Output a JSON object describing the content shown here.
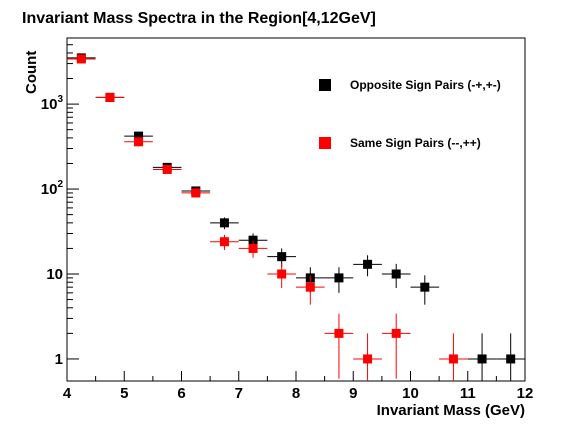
{
  "chart_data": {
    "type": "scatter",
    "title": "Invariant Mass Spectra in the Region[4,12GeV]",
    "xlabel": "Invariant Mass (GeV)",
    "ylabel": "Count",
    "xlim": [
      4,
      12
    ],
    "ylim": [
      0.55,
      6000
    ],
    "yscale": "log",
    "grid": false,
    "legend_position": "top-right",
    "x_ticks": [
      "4",
      "5",
      "6",
      "7",
      "8",
      "9",
      "10",
      "11",
      "12"
    ],
    "y_ticks": [
      {
        "value": 1,
        "base": "1",
        "exp": ""
      },
      {
        "value": 10,
        "base": "10",
        "exp": ""
      },
      {
        "value": 100,
        "base": "10",
        "exp": "2"
      },
      {
        "value": 1000,
        "base": "10",
        "exp": "3"
      }
    ],
    "series": [
      {
        "name": "Opposite Sign Pairs (-+,+-)",
        "color": "#000000",
        "x": [
          4.25,
          4.75,
          5.25,
          5.75,
          6.25,
          6.75,
          7.25,
          7.75,
          8.25,
          8.75,
          9.25,
          9.75,
          10.25,
          10.75,
          11.25,
          11.75
        ],
        "y": [
          3500,
          1200,
          420,
          180,
          95,
          40,
          25,
          16,
          9,
          9,
          13,
          10,
          7,
          null,
          1,
          1
        ]
      },
      {
        "name": "Same Sign Pairs (--,++)",
        "color": "#ff0000",
        "x": [
          4.25,
          4.75,
          5.25,
          5.75,
          6.25,
          6.75,
          7.25,
          7.75,
          8.25,
          8.75,
          9.25,
          9.75,
          10.25,
          10.75,
          11.25,
          11.75
        ],
        "y": [
          3400,
          1200,
          360,
          170,
          90,
          24,
          20,
          10,
          7,
          2,
          1,
          2,
          null,
          1,
          null,
          null
        ]
      }
    ]
  }
}
